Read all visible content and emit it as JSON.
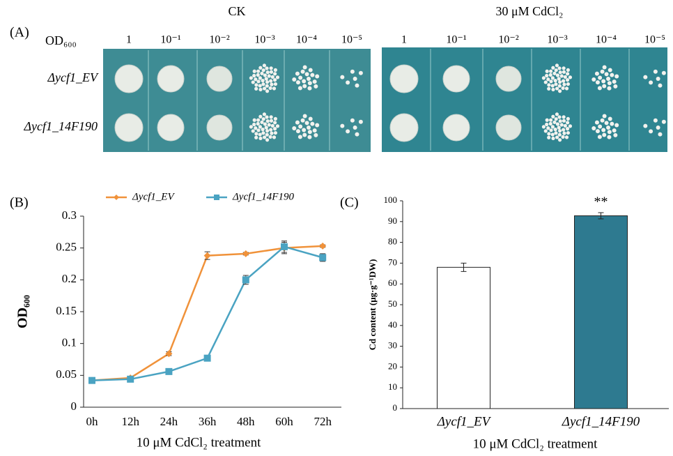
{
  "panel_a": {
    "label": "(A)",
    "od_label": "OD₆₀₀",
    "plates": [
      "CK",
      "30 μM CdCl₂"
    ],
    "dilutions": [
      "1",
      "10⁻¹",
      "10⁻²",
      "10⁻³",
      "10⁻⁴",
      "10⁻⁵"
    ],
    "strains": [
      "Δycf1_EV",
      "Δycf1_14F190"
    ]
  },
  "chart_data": [
    {
      "type": "line",
      "panel_label": "(B)",
      "y_label": "OD₆₀₀",
      "x_label": "10 μM CdCl₂ treatment",
      "categories": [
        "0h",
        "12h",
        "24h",
        "36h",
        "48h",
        "60h",
        "72h"
      ],
      "series": [
        {
          "name": "Δycf1_EV",
          "color": "#f0923a",
          "marker": "diamond",
          "values": [
            0.042,
            0.046,
            0.084,
            0.238,
            0.241,
            0.25,
            0.253
          ],
          "errors": [
            0.002,
            0.002,
            0.003,
            0.006,
            0.002,
            0.009,
            0.002
          ]
        },
        {
          "name": "Δycf1_14F190",
          "color": "#4aa3c2",
          "marker": "square",
          "values": [
            0.042,
            0.044,
            0.056,
            0.077,
            0.2,
            0.252,
            0.235
          ],
          "errors": [
            0.002,
            0.002,
            0.002,
            0.002,
            0.007,
            0.009,
            0.006
          ]
        }
      ],
      "ylim": [
        0,
        0.3
      ],
      "yticks": [
        0,
        0.05,
        0.1,
        0.15,
        0.2,
        0.25,
        0.3
      ],
      "legend": "top"
    },
    {
      "type": "bar",
      "panel_label": "(C)",
      "y_label": "Cd content (μg·g⁻¹DW)",
      "x_label": "10 μM CdCl₂ treatment",
      "categories": [
        "Δycf1_EV",
        "Δycf1_14F190"
      ],
      "values": [
        68,
        92.8
      ],
      "errors": [
        2,
        1.5
      ],
      "colors": [
        "#ffffff",
        "#2e7a90"
      ],
      "annotations": [
        null,
        "**"
      ],
      "ylim": [
        0,
        100
      ],
      "yticks": [
        0,
        10,
        20,
        30,
        40,
        50,
        60,
        70,
        80,
        90,
        100
      ]
    }
  ]
}
